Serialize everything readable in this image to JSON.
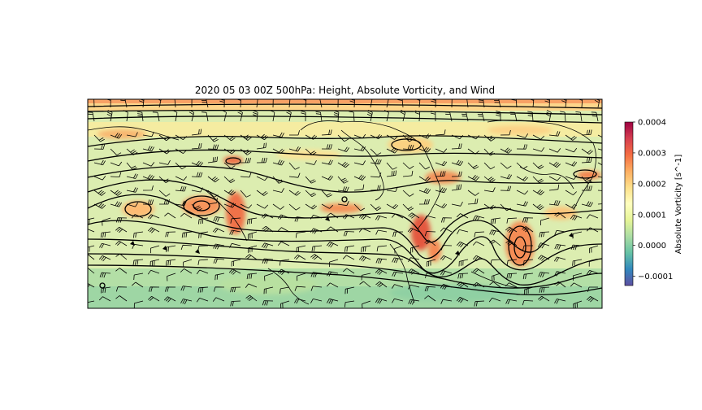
{
  "title": "2020 05 03 00Z 500hPa: Height, Absolute Vorticity, and Wind",
  "colorbar": {
    "label": "Absolute Vorticity [s^-1]",
    "min": -0.00013,
    "max": 0.0004,
    "ticks": [
      {
        "value": 0.0004,
        "label": "0.0004"
      },
      {
        "value": 0.0003,
        "label": "0.0003"
      },
      {
        "value": 0.0002,
        "label": "0.0002"
      },
      {
        "value": 0.0001,
        "label": "0.0001"
      },
      {
        "value": 0.0,
        "label": "0.0000"
      },
      {
        "value": -0.0001,
        "label": "−0.0001"
      }
    ],
    "colors": [
      "#9e0142",
      "#d53e4f",
      "#f46d43",
      "#fdae61",
      "#fee08b",
      "#ffffbf",
      "#e6f598",
      "#abdda4",
      "#66c2a5",
      "#3288bd",
      "#5e4fa2"
    ]
  },
  "map": {
    "background": "#dcedb0",
    "contour_color": "#000000",
    "coast_color": "#000000"
  }
}
